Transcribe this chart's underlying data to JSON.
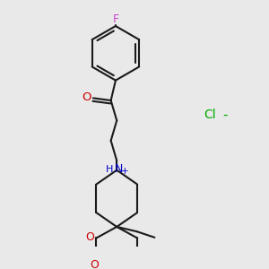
{
  "background_color": "#e9e9e9",
  "F_color": "#cc44cc",
  "O_color": "#cc0000",
  "N_color": "#0000cc",
  "Cl_color": "#00aa00",
  "bond_color": "#1a1a1a",
  "bond_width": 1.5,
  "xlim": [
    -0.45,
    0.55
  ],
  "ylim": [
    -0.52,
    0.52
  ]
}
